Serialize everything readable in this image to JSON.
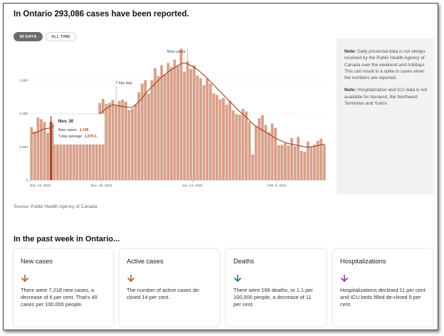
{
  "headline": "In Ontario 293,086 cases have been reported.",
  "toggles": {
    "days": "90 DAYS",
    "all": "ALL TIME"
  },
  "notes": [
    {
      "label": "Note:",
      "text": " Daily provincial data is not always received by the Public Health Agency of Canada over the weekend and holidays. This can result in a spike in cases when the numbers are reported."
    },
    {
      "label": "Note:",
      "text": " Hospitalization and ICU data is not available for Nunavut, the Northwest Territories and Yukon."
    }
  ],
  "source": "Source: Public Health Agency of Canada.",
  "week_title": "In the past week in Ontario...",
  "cards": [
    {
      "title": "New cases",
      "arrow": "down",
      "color": "#b65a32",
      "body": "There were 7,218 new cases, a decrease of 6 per cent. That's 49 cases per 100,000 people."
    },
    {
      "title": "Active cases",
      "arrow": "down",
      "color": "#b65a32",
      "body": "The number of active cases de-clined 14 per cent."
    },
    {
      "title": "Deaths",
      "arrow": "down",
      "color": "#2a6f86",
      "body": "There were 168 deaths, or 1.1 per 100,000 people, a decrease of 11 per cent."
    },
    {
      "title": "Hospitalizations",
      "arrow": "down",
      "color": "#8a3d8f",
      "body": "Hospitalizations declined 11 per cent and ICU beds filled de-clined 5 per cent."
    }
  ],
  "colors": {
    "bar": "#d9a08a",
    "highlight": "#a84c28",
    "avg_line": "#9c4320",
    "gridline": "#dddddd"
  },
  "chart_data": {
    "type": "bar",
    "title": "",
    "xlabel": "",
    "ylabel": "",
    "ylim": [
      0,
      4000
    ],
    "yticks": [
      0,
      1000,
      2000,
      3000
    ],
    "ytick_labels": [
      "0",
      "1,000",
      "2,000",
      "3,000"
    ],
    "x_start_index_labels": [
      {
        "index": 0,
        "label": "Nov. 24, 2020"
      },
      {
        "index": 22,
        "label": "Dec. 16, 2020"
      },
      {
        "index": 50,
        "label": "Jan. 13, 2021"
      },
      {
        "index": 76,
        "label": "Feb. 8, 2021"
      }
    ],
    "annotations": [
      {
        "index": 48,
        "label": "New cases"
      },
      {
        "index": 26,
        "label": "7 day avg."
      }
    ],
    "tooltip": {
      "index": 6,
      "date": "Nov. 30",
      "new_cases_label": "New cases:",
      "new_cases": "1,746",
      "avg_label": "7-day average:",
      "avg": "1,570.1"
    },
    "highlight_index": 6,
    "series": [
      {
        "kind": "bars",
        "values": [
          1590,
          1460,
          1880,
          1830,
          1750,
          1420,
          1746,
          1700,
          1680,
          1760,
          1850,
          1870,
          1800,
          1720,
          1650,
          1760,
          1890,
          1920,
          1980,
          1930,
          1860,
          2320,
          2440,
          2290,
          2320,
          2410,
          2260,
          2380,
          2420,
          2360,
          2110,
          2150,
          2280,
          2640,
          2900,
          3000,
          2600,
          3000,
          3360,
          3130,
          3450,
          3180,
          3520,
          3390,
          3620,
          3430,
          3950,
          3260,
          3580,
          3340,
          3450,
          3140,
          3060,
          2850,
          3050,
          2900,
          2610,
          2560,
          2430,
          2470,
          2270,
          2390,
          2090,
          1980,
          1960,
          2140,
          2060,
          1750,
          770,
          1630,
          1860,
          1950,
          1660,
          1440,
          1700,
          1570,
          1050,
          1060,
          1110,
          1040,
          1260,
          1020,
          1300,
          880,
          850,
          1160,
          990,
          1060,
          1180,
          1240,
          1080
        ]
      },
      {
        "kind": "line",
        "name": "7 day avg.",
        "values": [
          1400,
          1420,
          1450,
          1500,
          1540,
          1555,
          1570,
          1640,
          1700,
          1740,
          1760,
          1780,
          1790,
          1800,
          1810,
          1820,
          1850,
          1880,
          1900,
          1920,
          1940,
          2000,
          2080,
          2150,
          2220,
          2260,
          2250,
          2230,
          2210,
          2200,
          2180,
          2190,
          2260,
          2360,
          2460,
          2600,
          2700,
          2800,
          2900,
          3000,
          3090,
          3170,
          3250,
          3320,
          3380,
          3440,
          3500,
          3520,
          3490,
          3440,
          3390,
          3320,
          3240,
          3150,
          3060,
          2960,
          2860,
          2760,
          2660,
          2560,
          2460,
          2360,
          2260,
          2160,
          2060,
          1980,
          1890,
          1790,
          1690,
          1620,
          1560,
          1500,
          1440,
          1380,
          1320,
          1260,
          1210,
          1170,
          1130,
          1100,
          1080,
          1060,
          1040,
          1020,
          1000,
          990,
          1000,
          1020,
          1040,
          1060,
          1080
        ]
      }
    ]
  }
}
